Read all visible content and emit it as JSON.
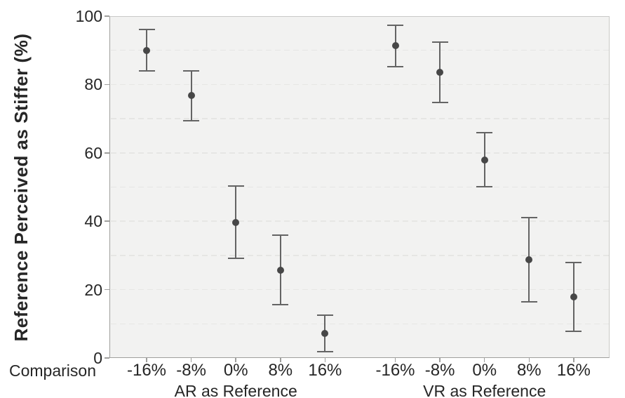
{
  "chart_data": {
    "type": "scatter",
    "title": "",
    "ylabel": "Reference Perceived as Stiffer (%)",
    "xlabel": "Comparison",
    "ylim": [
      0,
      100
    ],
    "y_ticks": [
      0,
      20,
      40,
      60,
      80,
      100
    ],
    "gridlines": [
      10,
      20,
      30,
      40,
      50,
      60,
      70,
      80,
      90
    ],
    "grid_style": "dashed",
    "legend": "none",
    "categories": [
      "-16%",
      "-8%",
      "0%",
      "8%",
      "16%"
    ],
    "groups": [
      {
        "label": "AR as Reference",
        "points": [
          {
            "x": "-16%",
            "mean": 90.0,
            "ci_low": 84.0,
            "ci_high": 96.0
          },
          {
            "x": "-8%",
            "mean": 76.8,
            "ci_low": 69.5,
            "ci_high": 84.0
          },
          {
            "x": "0%",
            "mean": 39.7,
            "ci_low": 29.1,
            "ci_high": 50.3
          },
          {
            "x": "8%",
            "mean": 25.6,
            "ci_low": 15.7,
            "ci_high": 35.9
          },
          {
            "x": "16%",
            "mean": 7.2,
            "ci_low": 1.8,
            "ci_high": 12.6
          }
        ]
      },
      {
        "label": "VR as Reference",
        "points": [
          {
            "x": "-16%",
            "mean": 91.4,
            "ci_low": 85.3,
            "ci_high": 97.4
          },
          {
            "x": "-8%",
            "mean": 83.6,
            "ci_low": 74.8,
            "ci_high": 92.4
          },
          {
            "x": "0%",
            "mean": 58.0,
            "ci_low": 50.2,
            "ci_high": 66.0
          },
          {
            "x": "8%",
            "mean": 28.8,
            "ci_low": 16.4,
            "ci_high": 41.0
          },
          {
            "x": "16%",
            "mean": 17.8,
            "ci_low": 7.8,
            "ci_high": 28.0
          }
        ]
      }
    ]
  },
  "colors": {
    "plot_background": "#f2f2f1",
    "gridline": "#e6e6e4",
    "axis": "#9f9f9d",
    "error_bar": "#646464",
    "marker": "#474747",
    "text": "#262626"
  }
}
